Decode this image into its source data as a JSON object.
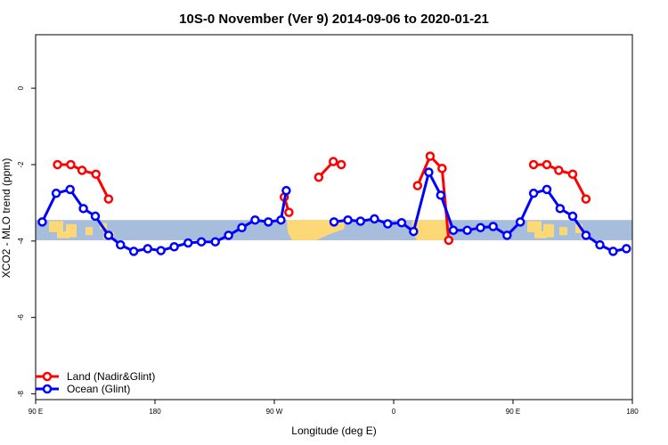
{
  "chart_data": {
    "type": "line",
    "title": "10S-0 November (Ver 9)   2014-09-06 to 2020-01-21",
    "xlabel": "Longitude (deg E)",
    "ylabel": "XCO2 - MLO trend (ppm)",
    "xlim": [
      90,
      540
    ],
    "ylim": [
      -8.15,
      1.4
    ],
    "x_ticks": [
      {
        "value": 90,
        "label": "90 E"
      },
      {
        "value": 180,
        "label": "180"
      },
      {
        "value": 270,
        "label": "90 W"
      },
      {
        "value": 360,
        "label": "0"
      },
      {
        "value": 450,
        "label": "90 E"
      },
      {
        "value": 540,
        "label": "180"
      }
    ],
    "y_ticks": [
      {
        "value": 0,
        "label": "0"
      },
      {
        "value": -2,
        "label": "-2"
      },
      {
        "value": -4,
        "label": "-4"
      },
      {
        "value": -6,
        "label": "-6"
      },
      {
        "value": -8,
        "label": "-8"
      }
    ],
    "latitude_band": {
      "y_top": -3.45,
      "y_bottom": -3.98,
      "color": "#a6bddb",
      "land_color": "#fcd976"
    },
    "legend": {
      "position": "bottom-left"
    },
    "series": [
      {
        "name": "Land (Nadir&Glint)",
        "color": "#ff0000",
        "segments": [
          [
            [
              106.5,
              -2.0
            ],
            [
              116.5,
              -2.0
            ],
            [
              125,
              -2.15
            ],
            [
              135.5,
              -2.25
            ],
            [
              145,
              -2.9
            ]
          ],
          [
            [
              277.5,
              -2.85
            ],
            [
              281,
              -3.25
            ]
          ],
          [
            [
              303.5,
              -2.33
            ],
            [
              314.5,
              -1.92
            ],
            [
              320.5,
              -2.0
            ]
          ],
          [
            [
              378,
              -2.55
            ],
            [
              387.5,
              -1.78
            ],
            [
              396.5,
              -2.1
            ],
            [
              401.5,
              -3.98
            ]
          ],
          [
            [
              465.5,
              -2.0
            ],
            [
              475.5,
              -2.0
            ],
            [
              484.5,
              -2.15
            ],
            [
              495,
              -2.25
            ],
            [
              505,
              -2.9
            ]
          ]
        ]
      },
      {
        "name": "Ocean (Glint)",
        "color": "#0000ff",
        "segments": [
          [
            [
              95,
              -3.5
            ],
            [
              105.5,
              -2.75
            ],
            [
              116,
              -2.65
            ],
            [
              126,
              -3.15
            ],
            [
              135,
              -3.35
            ],
            [
              145,
              -3.85
            ],
            [
              154,
              -4.1
            ],
            [
              164,
              -4.27
            ],
            [
              174.5,
              -4.2
            ],
            [
              184.5,
              -4.25
            ],
            [
              194.5,
              -4.15
            ],
            [
              205,
              -4.05
            ],
            [
              215,
              -4.02
            ],
            [
              225.5,
              -4.02
            ],
            [
              235.5,
              -3.85
            ],
            [
              245.5,
              -3.65
            ],
            [
              255.5,
              -3.45
            ],
            [
              265.5,
              -3.5
            ],
            [
              275,
              -3.45
            ],
            [
              279,
              -2.68
            ]
          ],
          [
            [
              315,
              -3.5
            ],
            [
              325.5,
              -3.45
            ],
            [
              335,
              -3.48
            ],
            [
              345.5,
              -3.42
            ],
            [
              355.5,
              -3.55
            ],
            [
              366,
              -3.52
            ],
            [
              375,
              -3.75
            ],
            [
              386.5,
              -2.2
            ],
            [
              395.5,
              -2.8
            ],
            [
              405,
              -3.72
            ],
            [
              415.5,
              -3.72
            ],
            [
              425.5,
              -3.65
            ],
            [
              435,
              -3.62
            ],
            [
              445.5,
              -3.85
            ],
            [
              455.5,
              -3.5
            ],
            [
              465.5,
              -2.75
            ],
            [
              475.5,
              -2.65
            ],
            [
              485.5,
              -3.15
            ],
            [
              495,
              -3.35
            ],
            [
              505,
              -3.85
            ],
            [
              515.5,
              -4.1
            ],
            [
              525.5,
              -4.27
            ],
            [
              535.5,
              -4.2
            ]
          ]
        ]
      }
    ]
  }
}
